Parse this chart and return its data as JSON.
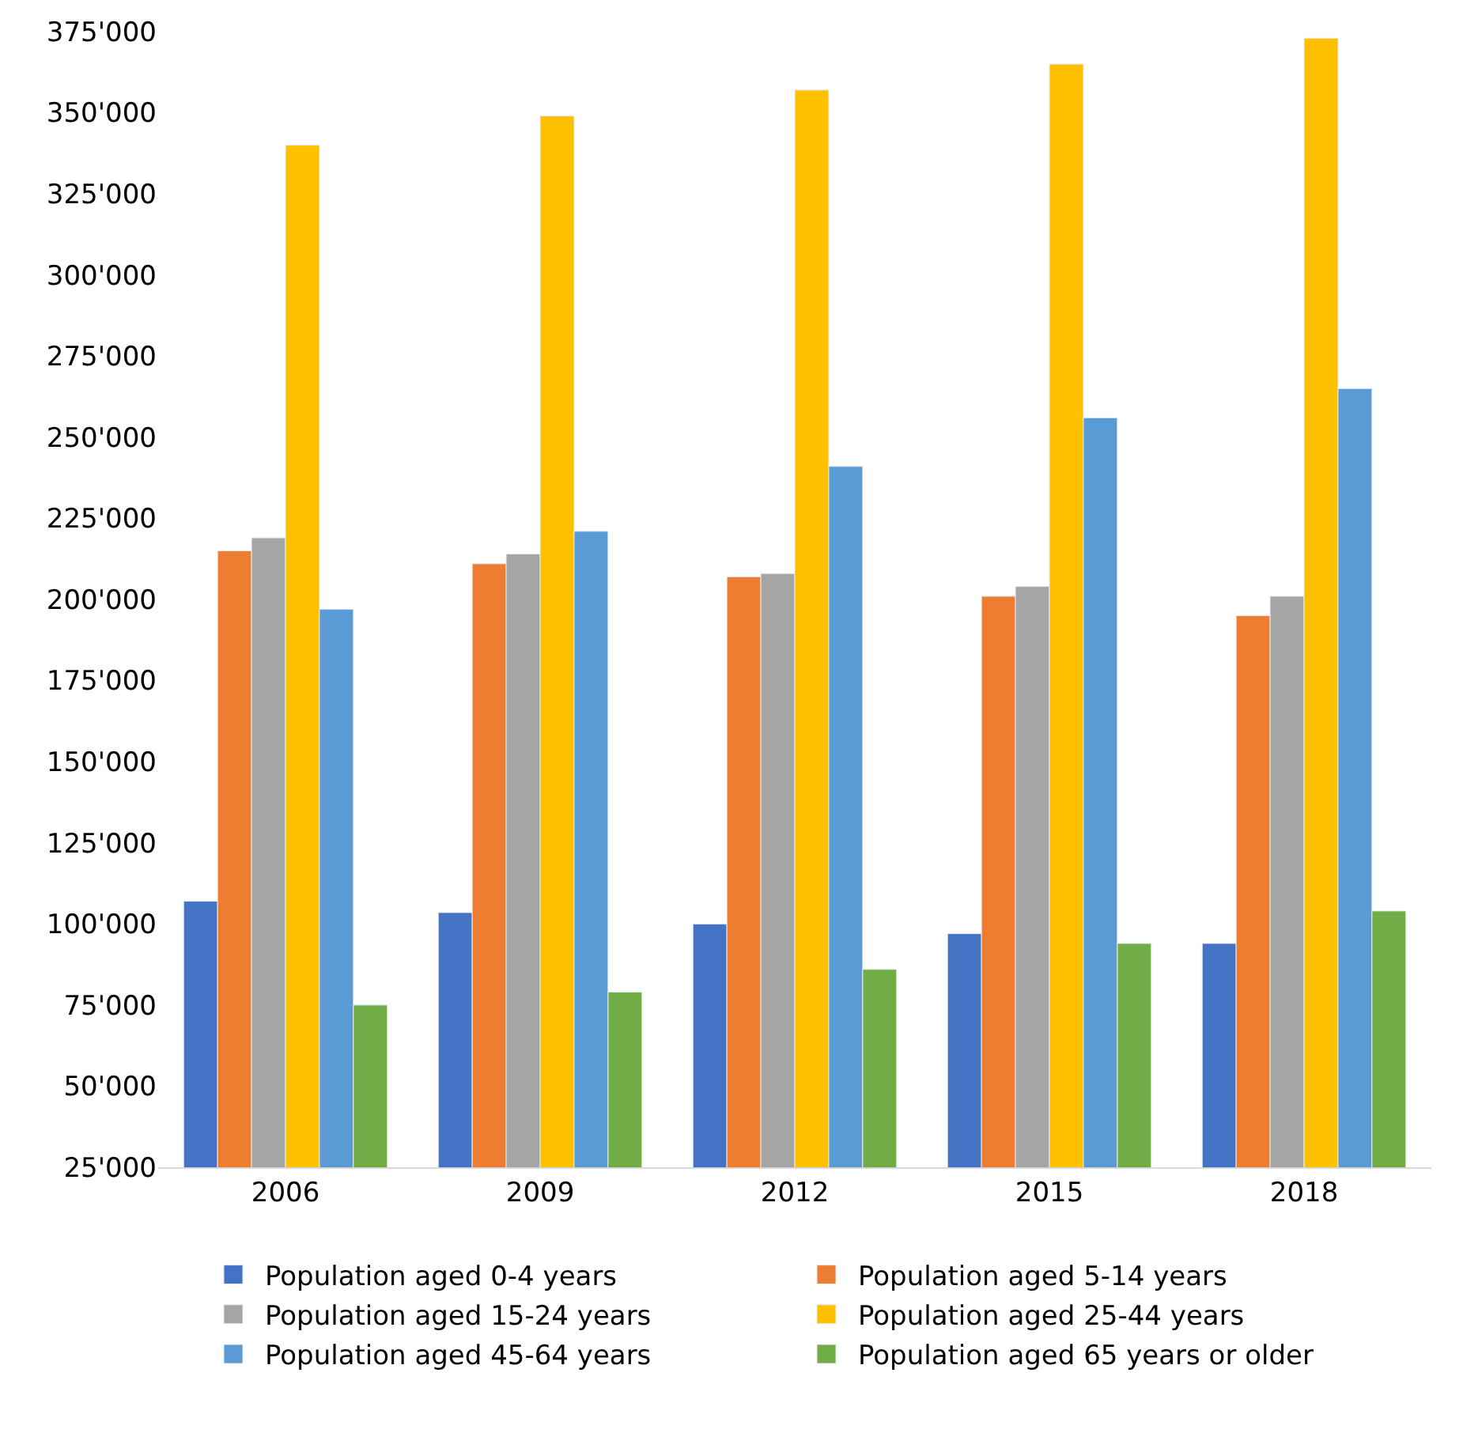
{
  "chart_data": {
    "type": "bar",
    "categories": [
      "2006",
      "2009",
      "2012",
      "2015",
      "2018"
    ],
    "series": [
      {
        "name": "Population aged 0-4 years",
        "color": "#4472c4",
        "values": [
          107000,
          103500,
          100000,
          97000,
          94000
        ]
      },
      {
        "name": "Population aged 5-14 years",
        "color": "#ed7d31",
        "values": [
          215000,
          211000,
          207000,
          201000,
          195000
        ]
      },
      {
        "name": "Population aged 15-24 years",
        "color": "#a5a5a5",
        "values": [
          219000,
          214000,
          208000,
          204000,
          201000
        ]
      },
      {
        "name": "Population aged 25-44 years",
        "color": "#ffc000",
        "values": [
          340000,
          349000,
          357000,
          365000,
          373000
        ]
      },
      {
        "name": "Population aged 45-64 years",
        "color": "#5b9bd5",
        "values": [
          197000,
          221000,
          241000,
          256000,
          265000
        ]
      },
      {
        "name": "Population aged 65 years or older",
        "color": "#70ad47",
        "values": [
          75000,
          79000,
          86000,
          94000,
          104000
        ]
      }
    ],
    "ylim": [
      25000,
      375000
    ],
    "yticks": [
      {
        "value": 25000,
        "label": "25'000"
      },
      {
        "value": 50000,
        "label": "50'000"
      },
      {
        "value": 75000,
        "label": "75'000"
      },
      {
        "value": 100000,
        "label": "100'000"
      },
      {
        "value": 125000,
        "label": "125'000"
      },
      {
        "value": 150000,
        "label": "150'000"
      },
      {
        "value": 175000,
        "label": "175'000"
      },
      {
        "value": 200000,
        "label": "200'000"
      },
      {
        "value": 225000,
        "label": "225'000"
      },
      {
        "value": 250000,
        "label": "250'000"
      },
      {
        "value": 275000,
        "label": "275'000"
      },
      {
        "value": 300000,
        "label": "300'000"
      },
      {
        "value": 325000,
        "label": "325'000"
      },
      {
        "value": 350000,
        "label": "350'000"
      },
      {
        "value": 375000,
        "label": "375'000"
      }
    ],
    "legend": "bottom"
  }
}
